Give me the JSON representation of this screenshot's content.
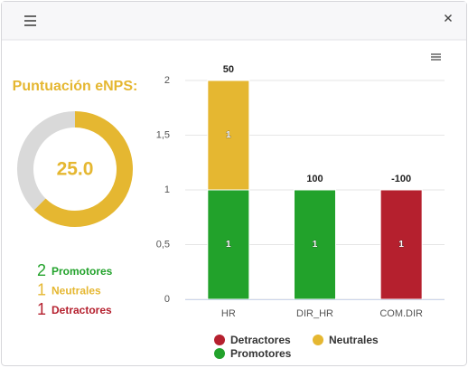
{
  "enps": {
    "title": "Puntuación eNPS:",
    "score": 25,
    "score_label": "25.0",
    "gauge": {
      "values": [
        62.5,
        37.5
      ],
      "colors": [
        "#e5b731",
        "#d9d9d9"
      ]
    },
    "counts": [
      {
        "value": 2,
        "label": "Promotores",
        "color": "#22a22b"
      },
      {
        "value": 1,
        "label": "Neutrales",
        "color": "#e5b731"
      },
      {
        "value": 1,
        "label": "Detractores",
        "color": "#b5202e"
      }
    ]
  },
  "chart_data": {
    "type": "stacked_bar",
    "categories": [
      "HR",
      "DIR_HR",
      "COM.DIR"
    ],
    "series": [
      {
        "name": "Detractores",
        "color": "#b5202e",
        "values": [
          null,
          null,
          1
        ]
      },
      {
        "name": "Neutrales",
        "color": "#e5b731",
        "values": [
          1,
          null,
          null
        ]
      },
      {
        "name": "Promotores",
        "color": "#22a22b",
        "values": [
          1,
          1,
          null
        ]
      }
    ],
    "stack_labels": [
      50,
      100,
      -100
    ],
    "ylim": [
      0,
      2
    ],
    "yticks": [
      0,
      {
        "value": 0.5,
        "label": "0,5"
      },
      1,
      {
        "value": 1.5,
        "label": "1,5"
      },
      2
    ],
    "grid": true
  }
}
